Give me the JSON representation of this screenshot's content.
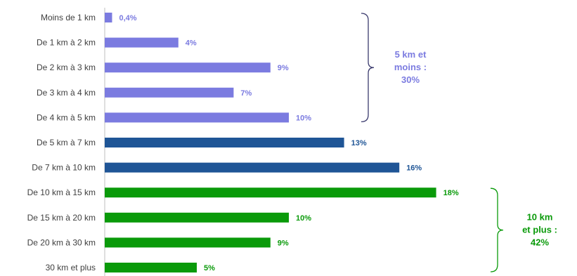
{
  "chart_data": {
    "type": "bar",
    "orientation": "horizontal",
    "title": "",
    "xlabel": "",
    "ylabel": "",
    "grid": false,
    "legend": "none",
    "xlim": [
      0,
      18
    ],
    "categories": [
      "Moins de 1 km",
      "De 1 km à 2 km",
      "De 2 km à 3 km",
      "De 3 km à 4 km",
      "De 4 km à 5 km",
      "De 5 km à 7 km",
      "De 7 km à 10 km",
      "De 10 km à 15 km",
      "De 15 km à 20 km",
      "De 20 km à 30 km",
      "30 km et plus"
    ],
    "values": [
      0.4,
      4,
      9,
      7,
      10,
      13,
      16,
      18,
      10,
      9,
      5
    ],
    "value_labels": [
      "0,4%",
      "4%",
      "9%",
      "7%",
      "10%",
      "13%",
      "16%",
      "18%",
      "10%",
      "9%",
      "5%"
    ],
    "bar_colors": [
      "#7b7be0",
      "#7b7be0",
      "#7b7be0",
      "#7b7be0",
      "#7b7be0",
      "#1f5596",
      "#1f5596",
      "#0a9a0a",
      "#0a9a0a",
      "#0a9a0a",
      "#0a9a0a"
    ],
    "annotations": [
      {
        "lines": [
          "5 km et",
          "moins :",
          "30%"
        ],
        "from_index": 0,
        "to_index": 4,
        "color": "#7b7be0",
        "bracket_color": "#3b3b6e"
      },
      {
        "lines": [
          "10 km",
          "et plus :",
          "42%"
        ],
        "from_index": 7,
        "to_index": 10,
        "color": "#0a9a0a",
        "bracket_color": "#0a9a0a"
      }
    ]
  }
}
